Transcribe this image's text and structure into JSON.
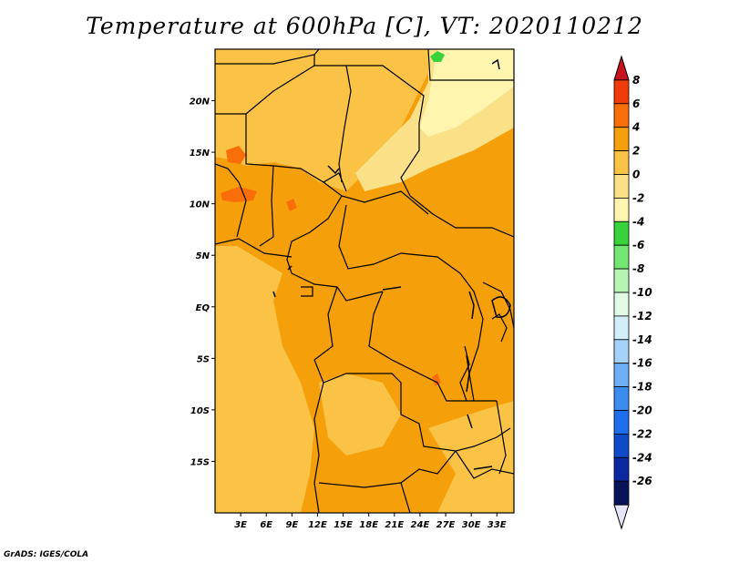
{
  "title": "Temperature at 600hPa [C], VT: 2020110212",
  "credit": "GrADS: IGES/COLA",
  "map": {
    "lon_labels": [
      "3E",
      "6E",
      "9E",
      "12E",
      "15E",
      "18E",
      "21E",
      "24E",
      "27E",
      "30E",
      "33E"
    ],
    "lon_values": [
      3,
      6,
      9,
      12,
      15,
      18,
      21,
      24,
      27,
      30,
      33
    ],
    "lat_labels": [
      "20N",
      "15N",
      "10N",
      "5N",
      "EQ",
      "5S",
      "10S",
      "15S"
    ],
    "lat_values": [
      20,
      15,
      10,
      5,
      0,
      -5,
      -10,
      -15
    ],
    "lon_range": [
      0,
      35
    ],
    "lat_range": [
      -20,
      25
    ]
  },
  "colorbar": {
    "labels": [
      "8",
      "6",
      "4",
      "2",
      "0",
      "-2",
      "-4",
      "-6",
      "-8",
      "-10",
      "-12",
      "-14",
      "-16",
      "-18",
      "-20",
      "-22",
      "-24",
      "-26"
    ],
    "colors": [
      "#c8141e",
      "#f03c0a",
      "#fa6e0a",
      "#f5a00a",
      "#fac346",
      "#fae187",
      "#fff5af",
      "#37d23c",
      "#73e673",
      "#b4f5b4",
      "#e1fae6",
      "#d2eefa",
      "#a5d2fa",
      "#6eaff5",
      "#3c8cf0",
      "#1e6eeb",
      "#0f4bc8",
      "#0a28a0",
      "#08145a",
      "#e6e6fa"
    ]
  },
  "field_colors": {
    "base": "#f5a00a",
    "warm_light": "#fac346",
    "cool": "#fae187",
    "cooler": "#fff5af",
    "hot": "#fa6e0a",
    "green": "#37d23c"
  }
}
